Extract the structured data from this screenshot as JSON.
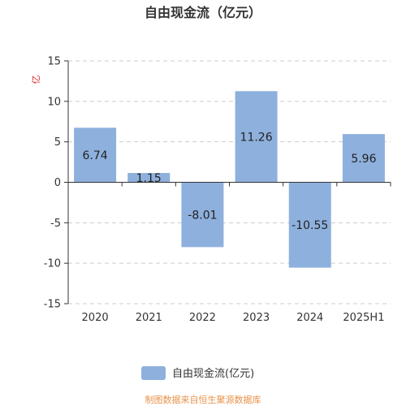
{
  "chart_data": {
    "type": "bar",
    "title": "自由现金流（亿元）",
    "ylabel": "亿",
    "categories": [
      "2020",
      "2021",
      "2022",
      "2023",
      "2024",
      "2025H1"
    ],
    "series": [
      {
        "name": "自由现金流(亿元)",
        "values": [
          6.74,
          1.15,
          -8.01,
          11.26,
          -10.55,
          5.96
        ]
      }
    ],
    "data_labels": [
      "6.74",
      "1.15",
      "-8.01",
      "11.26",
      "-10.55",
      "5.96"
    ],
    "ylim": [
      -15,
      15
    ],
    "yticks": [
      -15,
      -10,
      -5,
      0,
      5,
      10,
      15
    ],
    "grid": true,
    "legend_position": "bottom",
    "bar_color": "#8eb0dd"
  },
  "source_text": "制图数据来自恒生聚源数据库"
}
